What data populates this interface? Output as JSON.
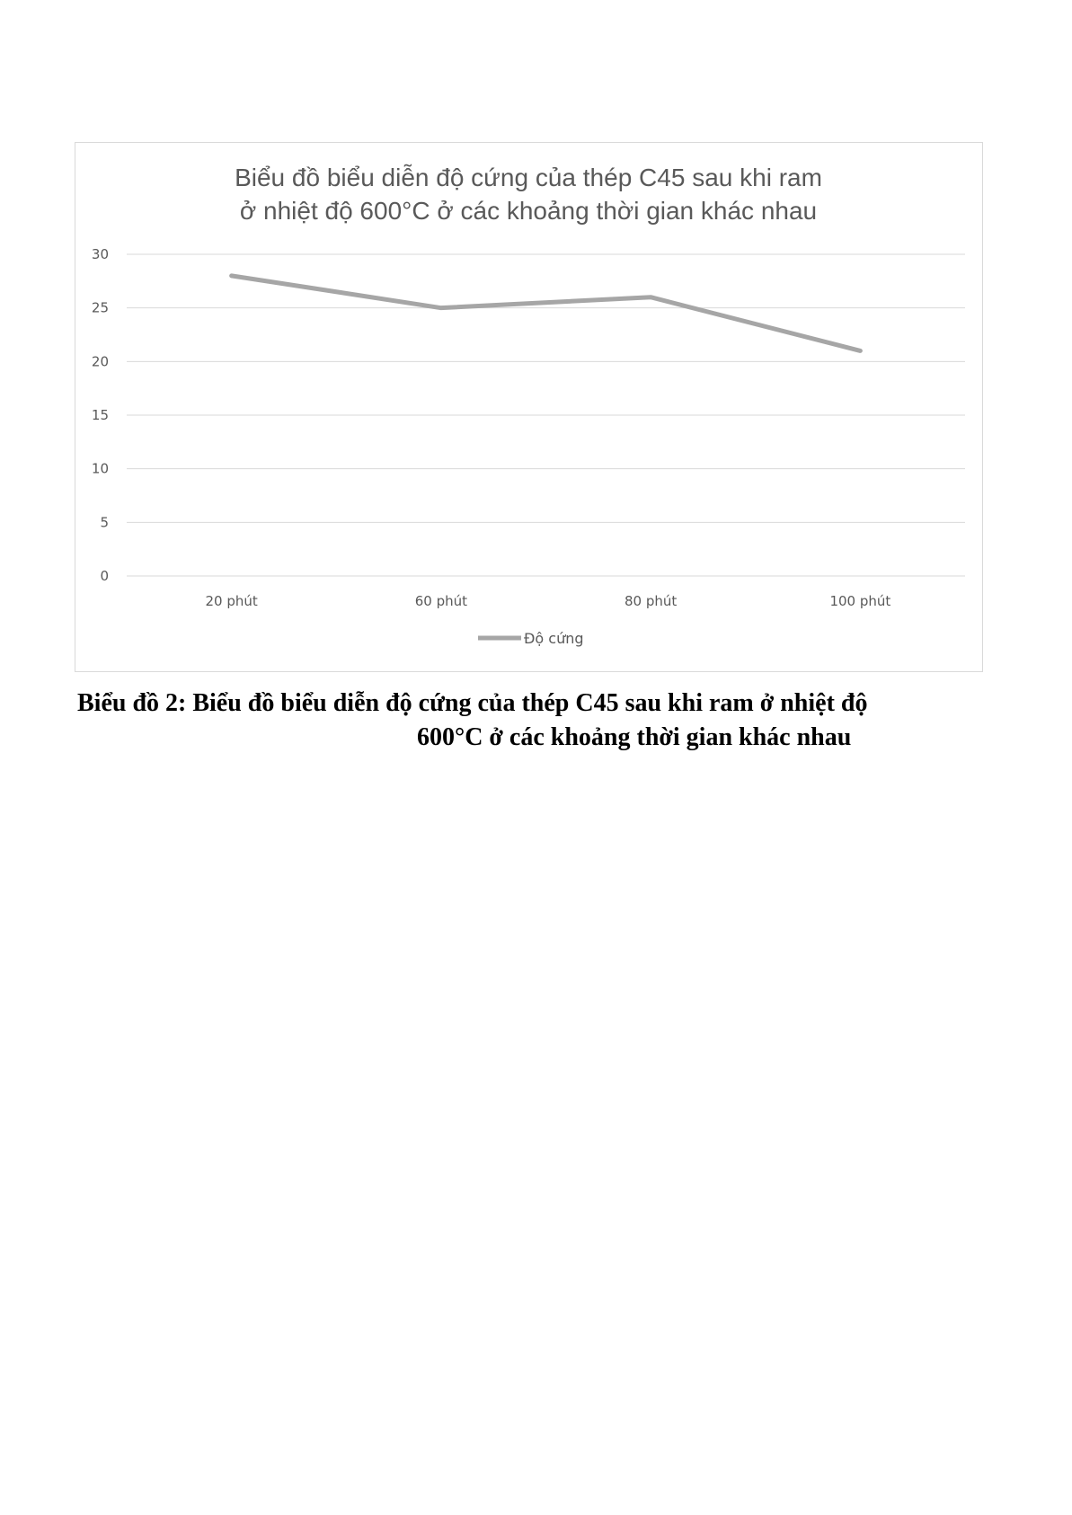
{
  "chart_data": {
    "type": "line",
    "title_lines": [
      "Biểu đồ biểu diễn độ cứng của thép C45 sau khi ram",
      "ở nhiệt độ 600°C ở các khoảng thời gian khác nhau"
    ],
    "categories": [
      "20 phút",
      "60 phút",
      "80 phút",
      "100 phút"
    ],
    "series": [
      {
        "name": "Độ cứng",
        "values": [
          28,
          25,
          26,
          21
        ],
        "color": "#a6a6a6"
      }
    ],
    "ylim": [
      0,
      30
    ],
    "yticks": [
      "0",
      "5",
      "10",
      "15",
      "20",
      "25",
      "30"
    ],
    "grid": true,
    "legend": "bottom",
    "xlabel": "",
    "ylabel": ""
  },
  "caption": {
    "line1": "Biểu đồ 2: Biểu đồ biểu diễn độ cứng của thép C45 sau khi ram ở nhiệt độ",
    "line2": "600°C ở các khoảng thời gian khác nhau"
  }
}
